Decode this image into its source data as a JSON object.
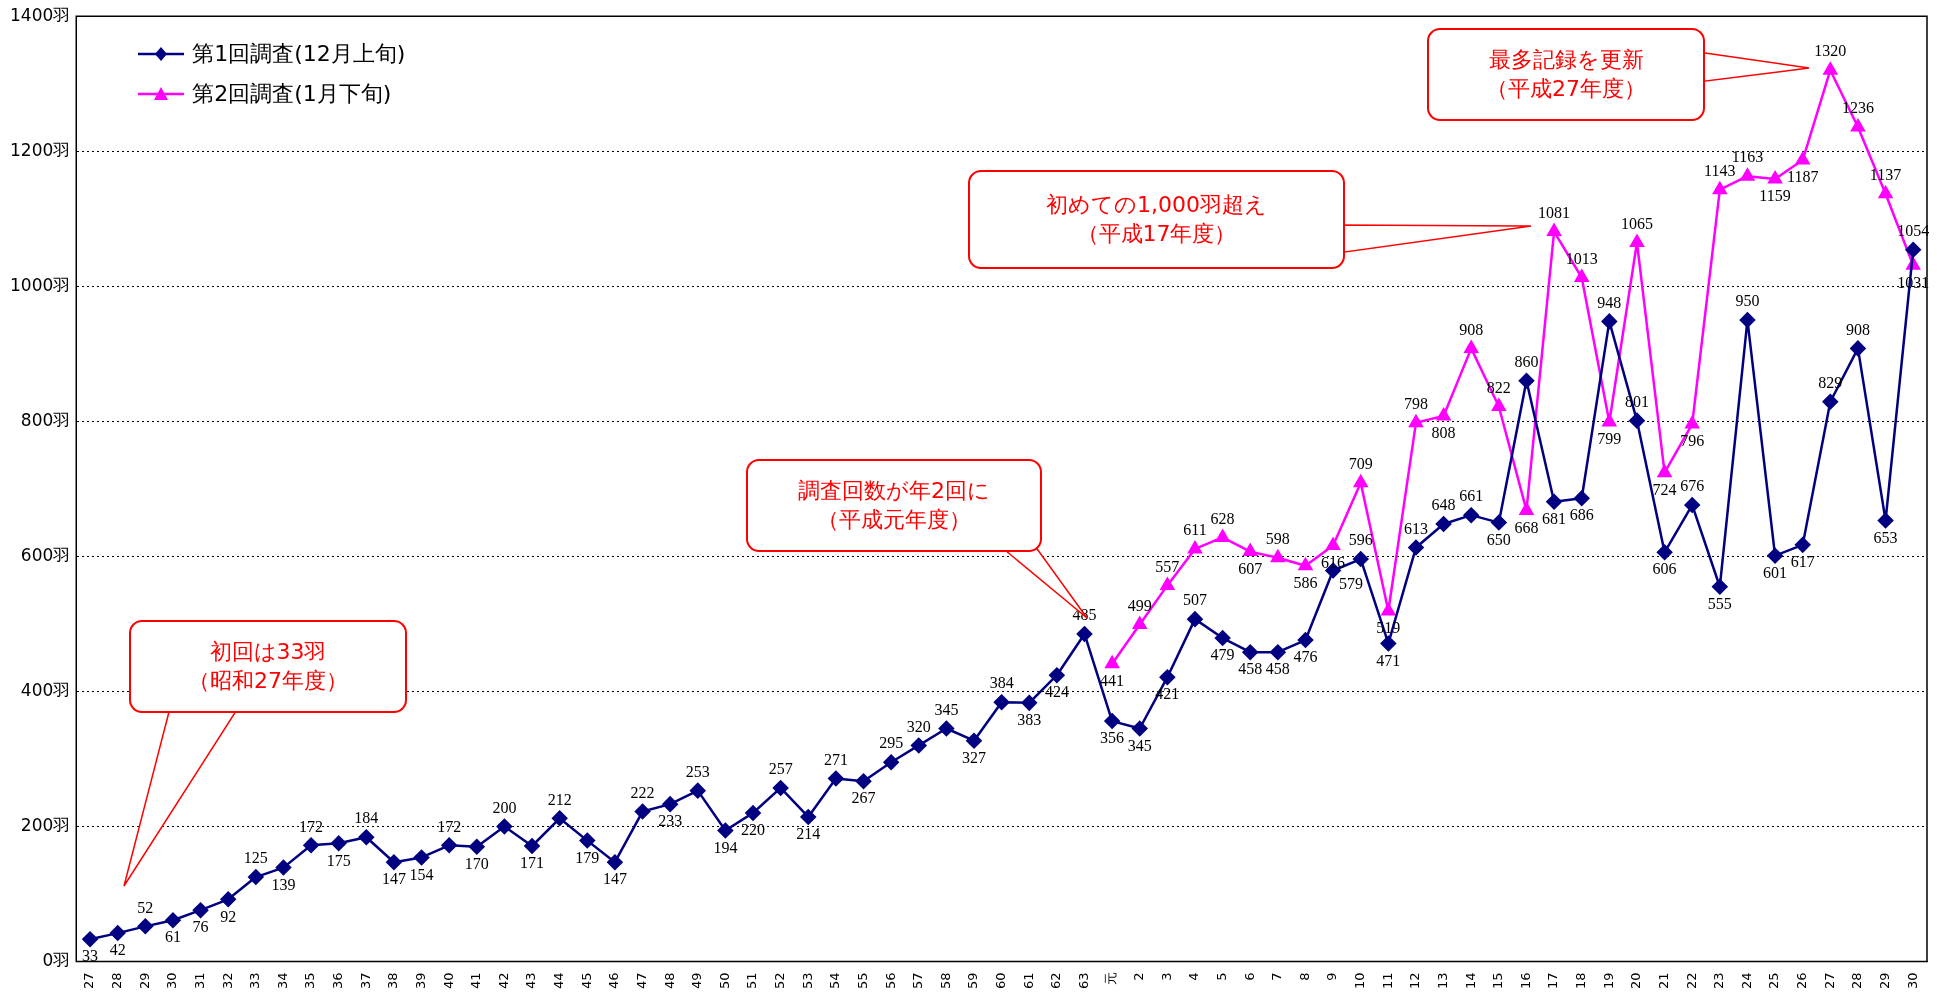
{
  "chart_data": {
    "type": "line",
    "categories": [
      "27",
      "28",
      "29",
      "30",
      "31",
      "32",
      "33",
      "34",
      "35",
      "36",
      "37",
      "38",
      "39",
      "40",
      "41",
      "42",
      "43",
      "44",
      "45",
      "46",
      "47",
      "48",
      "49",
      "50",
      "51",
      "52",
      "53",
      "54",
      "55",
      "56",
      "57",
      "58",
      "59",
      "60",
      "61",
      "62",
      "63",
      "元",
      "2",
      "3",
      "4",
      "5",
      "6",
      "7",
      "8",
      "9",
      "10",
      "11",
      "12",
      "13",
      "14",
      "15",
      "16",
      "17",
      "18",
      "19",
      "20",
      "21",
      "22",
      "23",
      "24",
      "25",
      "26",
      "27",
      "28",
      "29",
      "30"
    ],
    "series": [
      {
        "name": "第1回調査(12月上旬)",
        "color": "#000080",
        "marker": "diamond",
        "values": [
          33,
          42,
          52,
          61,
          76,
          92,
          125,
          139,
          172,
          175,
          184,
          147,
          154,
          172,
          170,
          200,
          171,
          212,
          179,
          147,
          222,
          233,
          253,
          194,
          220,
          257,
          214,
          271,
          267,
          295,
          320,
          345,
          327,
          384,
          383,
          424,
          485,
          356,
          345,
          421,
          507,
          479,
          458,
          458,
          476,
          579,
          596,
          471,
          613,
          648,
          661,
          650,
          860,
          681,
          686,
          948,
          801,
          606,
          676,
          555,
          950,
          601,
          617,
          829,
          908,
          653,
          1054
        ]
      },
      {
        "name": "第2回調査(1月下旬)",
        "color": "#ff00ff",
        "marker": "triangle",
        "values": [
          null,
          null,
          null,
          null,
          null,
          null,
          null,
          null,
          null,
          null,
          null,
          null,
          null,
          null,
          null,
          null,
          null,
          null,
          null,
          null,
          null,
          null,
          null,
          null,
          null,
          null,
          null,
          null,
          null,
          null,
          null,
          null,
          null,
          null,
          null,
          null,
          null,
          441,
          499,
          557,
          611,
          628,
          607,
          598,
          586,
          616,
          709,
          519,
          798,
          808,
          908,
          822,
          668,
          1081,
          1013,
          799,
          1065,
          724,
          796,
          1143,
          1163,
          1159,
          1187,
          1320,
          1236,
          1137,
          1031
        ]
      }
    ],
    "ylim": [
      0,
      1400
    ],
    "yticks": [
      {
        "value": 0,
        "label": "0羽"
      },
      {
        "value": 200,
        "label": "200羽"
      },
      {
        "value": 400,
        "label": "400羽"
      },
      {
        "value": 600,
        "label": "600羽"
      },
      {
        "value": 800,
        "label": "800羽"
      },
      {
        "value": 1000,
        "label": "1000羽"
      },
      {
        "value": 1200,
        "label": "1200羽"
      },
      {
        "value": 1400,
        "label": "1400羽"
      }
    ],
    "grid": "y",
    "legend": "top left",
    "data_labels": true,
    "annotations": [
      "初回は33羽（昭和27年度）",
      "調査回数が年2回に（平成元年度）",
      "初めての1,000羽超え（平成17年度）",
      "最多記録を更新（平成27年度）"
    ]
  }
}
